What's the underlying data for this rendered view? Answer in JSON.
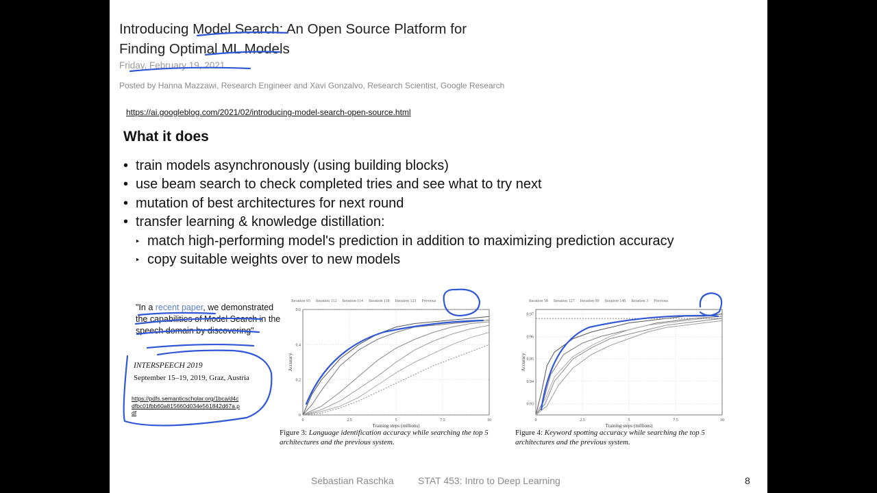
{
  "header": {
    "title_line1": "Introducing Model Search: An Open Source Platform for",
    "title_line2": "Finding Optimal ML Models",
    "date": "Friday, February 19, 2021",
    "posted_by": "Posted by Hanna Mazzawi, Research Engineer and Xavi Gonzalvo, Research Scientist, Google Research",
    "url": "https://ai.googleblog.com/2021/02/introducing-model-search-open-source.html"
  },
  "section": {
    "heading": "What it does",
    "bullets": [
      "train models asynchronously (using building blocks)",
      "use beam search to check completed tries and see what to try next",
      "mutation of best architectures for next round",
      "transfer learning & knowledge distillation:"
    ],
    "sub_bullets": [
      "match high-performing model's prediction in addition to maximizing prediction accuracy",
      "copy suitable weights over to new models"
    ],
    "bullet_symbol": "•",
    "sub_bullet_symbol": "‣"
  },
  "quote": {
    "part1": "\"In a ",
    "link": "recent paper",
    "part2": ", we demonstrated the capabilities of Model Search in the speech domain by discovering\""
  },
  "reference": {
    "venue": "INTERSPEECH 2019",
    "dates": "September 15–19, 2019, Graz, Austria",
    "pdf_url": "https://pdfs.semanticscholar.org/1bca/d4cdfbc01fbb60a815660d034e561842d67a.pdf"
  },
  "figures": {
    "fig3": {
      "legend": [
        "Iteration 93",
        "Iteration 112",
        "Iteration 114",
        "Iteration 118",
        "Iteration 123",
        "Previous"
      ],
      "caption_label": "Figure 3:",
      "caption_text": "Language identification accuracy while searching the top 5 architectures and the previous system."
    },
    "fig4": {
      "legend": [
        "Iteration 58",
        "Iteration 127",
        "Iteration 99",
        "Iteration 148",
        "Iteration 3",
        "Previous"
      ],
      "caption_label": "Figure 4:",
      "caption_text": "Keyword spotting accuracy while searching the top 5 architectures and the previous system."
    }
  },
  "chart_data": [
    {
      "type": "line",
      "xlabel": "Training steps (millions)",
      "ylabel": "Accuracy",
      "x_ticks": [
        "0",
        "2.5",
        "5",
        "7.5",
        "10"
      ],
      "y_ticks": [
        "0",
        "0.2",
        "0.4",
        "0.6"
      ],
      "xlim": [
        0,
        10
      ],
      "ylim": [
        0,
        0.6
      ],
      "grid": true,
      "series": [
        {
          "name": "Iteration 93",
          "x": [
            0,
            0.5,
            1,
            2,
            3,
            4,
            5,
            6,
            7,
            8,
            9,
            10
          ],
          "y": [
            0,
            0.12,
            0.2,
            0.32,
            0.4,
            0.46,
            0.5,
            0.52,
            0.53,
            0.54,
            0.55,
            0.56
          ]
        },
        {
          "name": "Iteration 112",
          "x": [
            0,
            0.5,
            1,
            2,
            3,
            4,
            5,
            6,
            7,
            8,
            9,
            10
          ],
          "y": [
            0,
            0.06,
            0.14,
            0.28,
            0.37,
            0.43,
            0.47,
            0.5,
            0.51,
            0.52,
            0.53,
            0.54
          ]
        },
        {
          "name": "Iteration 114",
          "x": [
            0,
            1,
            2,
            3,
            4,
            5,
            6,
            7,
            8,
            9,
            10
          ],
          "y": [
            0,
            0.05,
            0.13,
            0.22,
            0.31,
            0.38,
            0.43,
            0.47,
            0.5,
            0.52,
            0.53
          ]
        },
        {
          "name": "Iteration 118",
          "x": [
            0,
            1,
            2,
            3,
            4,
            5,
            6,
            7,
            8,
            9,
            10
          ],
          "y": [
            0,
            0.03,
            0.08,
            0.15,
            0.22,
            0.3,
            0.37,
            0.42,
            0.46,
            0.49,
            0.51
          ]
        },
        {
          "name": "Iteration 123",
          "x": [
            0,
            1,
            2,
            3,
            4,
            5,
            6,
            7,
            8,
            9,
            10
          ],
          "y": [
            0,
            0.02,
            0.05,
            0.1,
            0.17,
            0.24,
            0.3,
            0.35,
            0.4,
            0.44,
            0.47
          ]
        },
        {
          "name": "Previous",
          "x": [
            0,
            1,
            2,
            3,
            4,
            5,
            6,
            7,
            8,
            9,
            10
          ],
          "y": [
            0,
            0.01,
            0.04,
            0.08,
            0.13,
            0.18,
            0.23,
            0.28,
            0.32,
            0.36,
            0.4
          ]
        }
      ]
    },
    {
      "type": "line",
      "xlabel": "Training steps (millions)",
      "ylabel": "Accuracy",
      "x_ticks": [
        "0",
        "2.5",
        "5",
        "7.5",
        "10"
      ],
      "y_ticks": [
        "0.93",
        "0.94",
        "0.95",
        "0.96",
        "0.97"
      ],
      "xlim": [
        0,
        10
      ],
      "ylim": [
        0.925,
        0.972
      ],
      "grid": true,
      "series": [
        {
          "name": "Iteration 58",
          "x": [
            0,
            0.3,
            0.6,
            1,
            2,
            3,
            4,
            5,
            6,
            7,
            8,
            9,
            10
          ],
          "y": [
            0.925,
            0.935,
            0.947,
            0.953,
            0.959,
            0.962,
            0.964,
            0.966,
            0.967,
            0.968,
            0.969,
            0.969,
            0.97
          ]
        },
        {
          "name": "Iteration 127",
          "x": [
            0,
            0.4,
            0.8,
            1.5,
            2.5,
            3.5,
            4.5,
            5.5,
            6.5,
            7.5,
            8.5,
            10
          ],
          "y": [
            0.925,
            0.931,
            0.943,
            0.952,
            0.957,
            0.96,
            0.962,
            0.964,
            0.966,
            0.967,
            0.968,
            0.969
          ]
        },
        {
          "name": "Iteration 99",
          "x": [
            0,
            0.5,
            1,
            2,
            3,
            4,
            5,
            6,
            7,
            8,
            9,
            10
          ],
          "y": [
            0.925,
            0.93,
            0.94,
            0.95,
            0.955,
            0.959,
            0.961,
            0.963,
            0.965,
            0.966,
            0.967,
            0.968
          ]
        },
        {
          "name": "Iteration 148",
          "x": [
            0,
            0.6,
            1.2,
            2,
            3,
            4,
            5,
            6,
            7,
            8,
            9,
            10
          ],
          "y": [
            0.925,
            0.929,
            0.938,
            0.946,
            0.952,
            0.956,
            0.959,
            0.962,
            0.964,
            0.965,
            0.966,
            0.967
          ]
        },
        {
          "name": "Iteration 3",
          "x": [
            0,
            0.5,
            1,
            2,
            3,
            4,
            5,
            6,
            7,
            8,
            9,
            10
          ],
          "y": [
            0.925,
            0.932,
            0.942,
            0.951,
            0.956,
            0.96,
            0.963,
            0.965,
            0.966,
            0.967,
            0.968,
            0.968
          ]
        },
        {
          "name": "Previous",
          "x": [
            0,
            10
          ],
          "y": [
            0.968,
            0.968
          ]
        }
      ]
    }
  ],
  "footer": {
    "author": "Sebastian Raschka",
    "course": "STAT 453: Intro to Deep Learning",
    "page": "8"
  },
  "colors": {
    "annotation_blue": "#2f57d6",
    "text": "#111111",
    "muted": "#999999",
    "chart_gray": "#9a9a9a"
  }
}
